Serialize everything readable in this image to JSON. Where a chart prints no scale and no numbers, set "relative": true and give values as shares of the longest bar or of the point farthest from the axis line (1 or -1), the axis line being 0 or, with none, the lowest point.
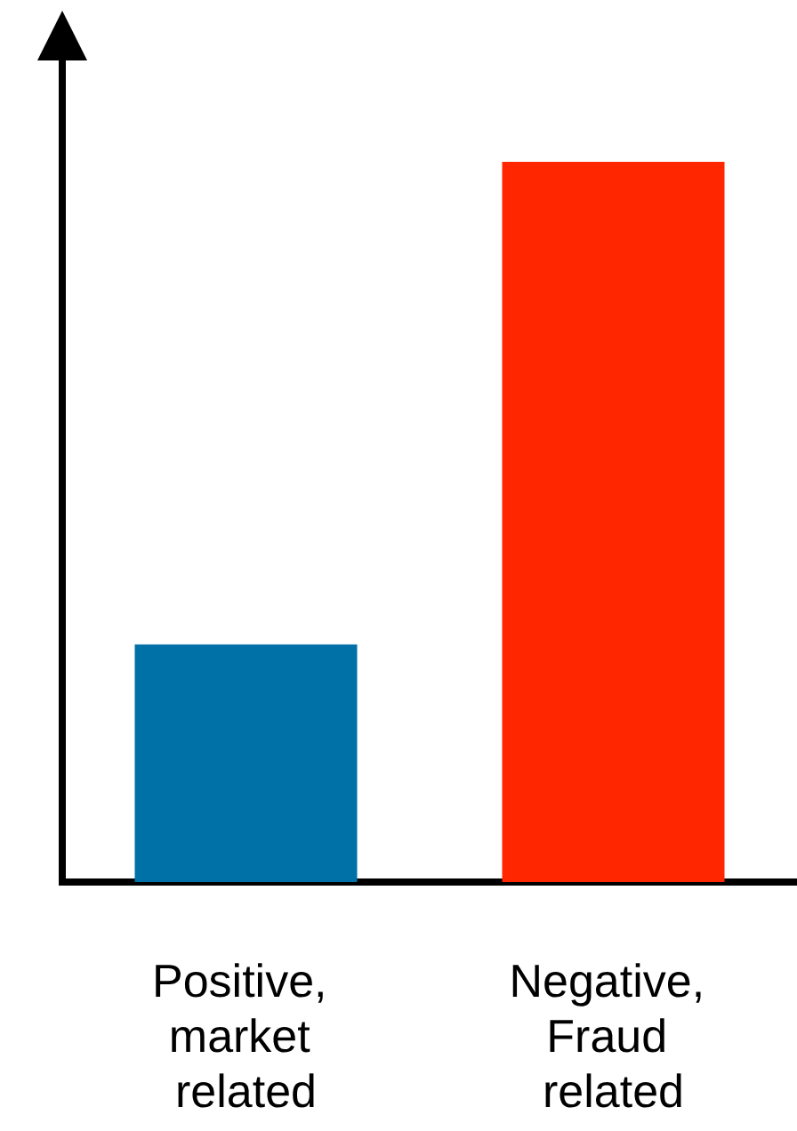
{
  "chart_data": {
    "type": "bar",
    "relative": true,
    "categories": [
      "Positive, market related",
      "Negative, Fraud related"
    ],
    "values": [
      0.33,
      1
    ],
    "colors": [
      "#0071a6",
      "#ff2600"
    ],
    "grid": false
  }
}
